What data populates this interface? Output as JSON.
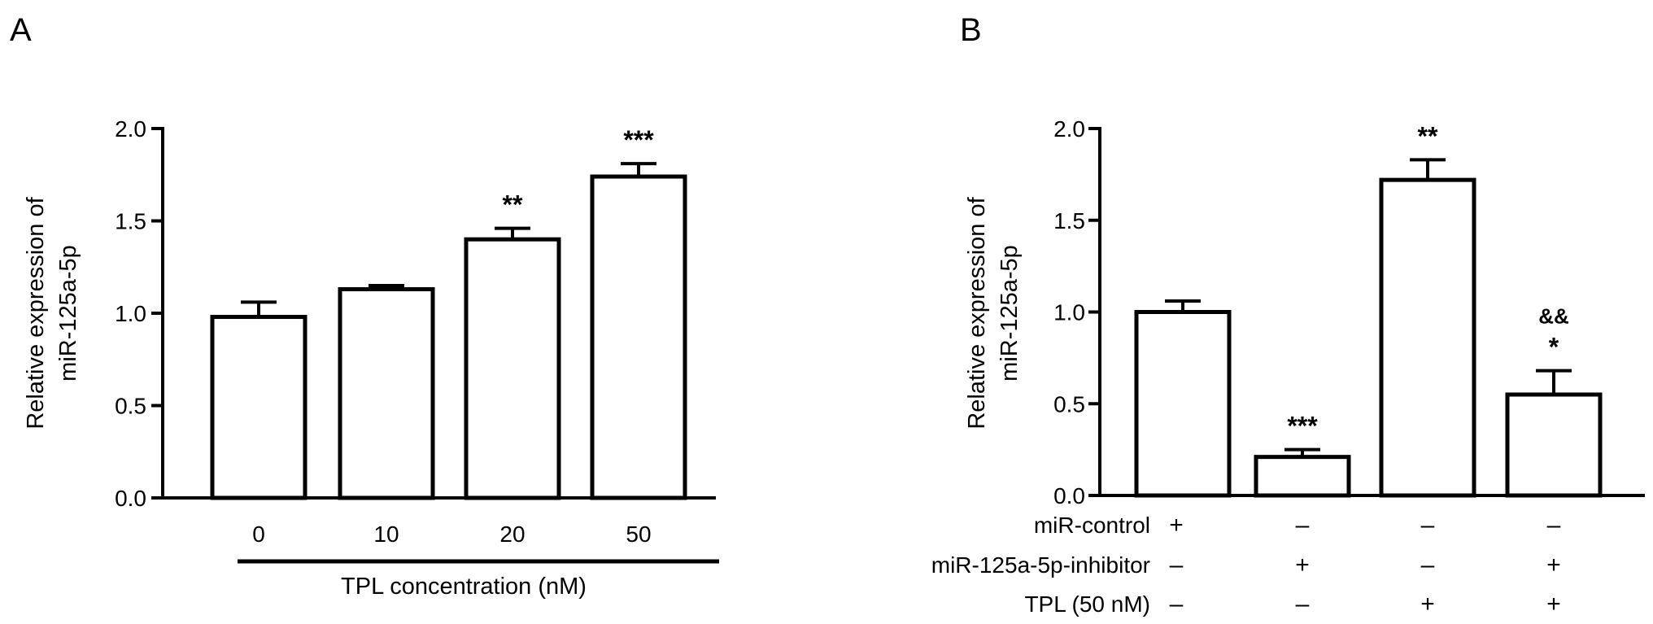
{
  "chart_data": [
    {
      "panel": "A",
      "type": "bar",
      "xlabel": "TPL concentration (nM)",
      "ylabel_lines": [
        "Relative expression of",
        "miR-125a-5p"
      ],
      "ylim": [
        0,
        2.0
      ],
      "yticks": [
        "0.0",
        "0.5",
        "1.0",
        "1.5",
        "2.0"
      ],
      "categories": [
        "0",
        "10",
        "20",
        "50"
      ],
      "values": [
        0.98,
        1.13,
        1.4,
        1.74
      ],
      "errors": [
        0.08,
        0.02,
        0.06,
        0.07
      ],
      "significance": [
        "",
        "",
        "**",
        "***"
      ],
      "grid": false
    },
    {
      "panel": "B",
      "type": "bar",
      "ylabel_lines": [
        "Relative expression of",
        "miR-125a-5p"
      ],
      "ylim": [
        0,
        2.0
      ],
      "yticks": [
        "0.0",
        "0.5",
        "1.0",
        "1.5",
        "2.0"
      ],
      "values": [
        1.0,
        0.21,
        1.72,
        0.55
      ],
      "errors": [
        0.06,
        0.04,
        0.11,
        0.13
      ],
      "significance": [
        "",
        "***",
        "**",
        "*"
      ],
      "significance2": [
        "",
        "",
        "",
        "&&"
      ],
      "conditions": [
        {
          "label": "miR-control",
          "signs": [
            "+",
            "–",
            "–",
            "–"
          ]
        },
        {
          "label": "miR-125a-5p-inhibitor",
          "signs": [
            "–",
            "+",
            "–",
            "+"
          ]
        },
        {
          "label": "TPL (50 nM)",
          "signs": [
            "–",
            "–",
            "+",
            "+"
          ]
        }
      ],
      "grid": false
    }
  ]
}
